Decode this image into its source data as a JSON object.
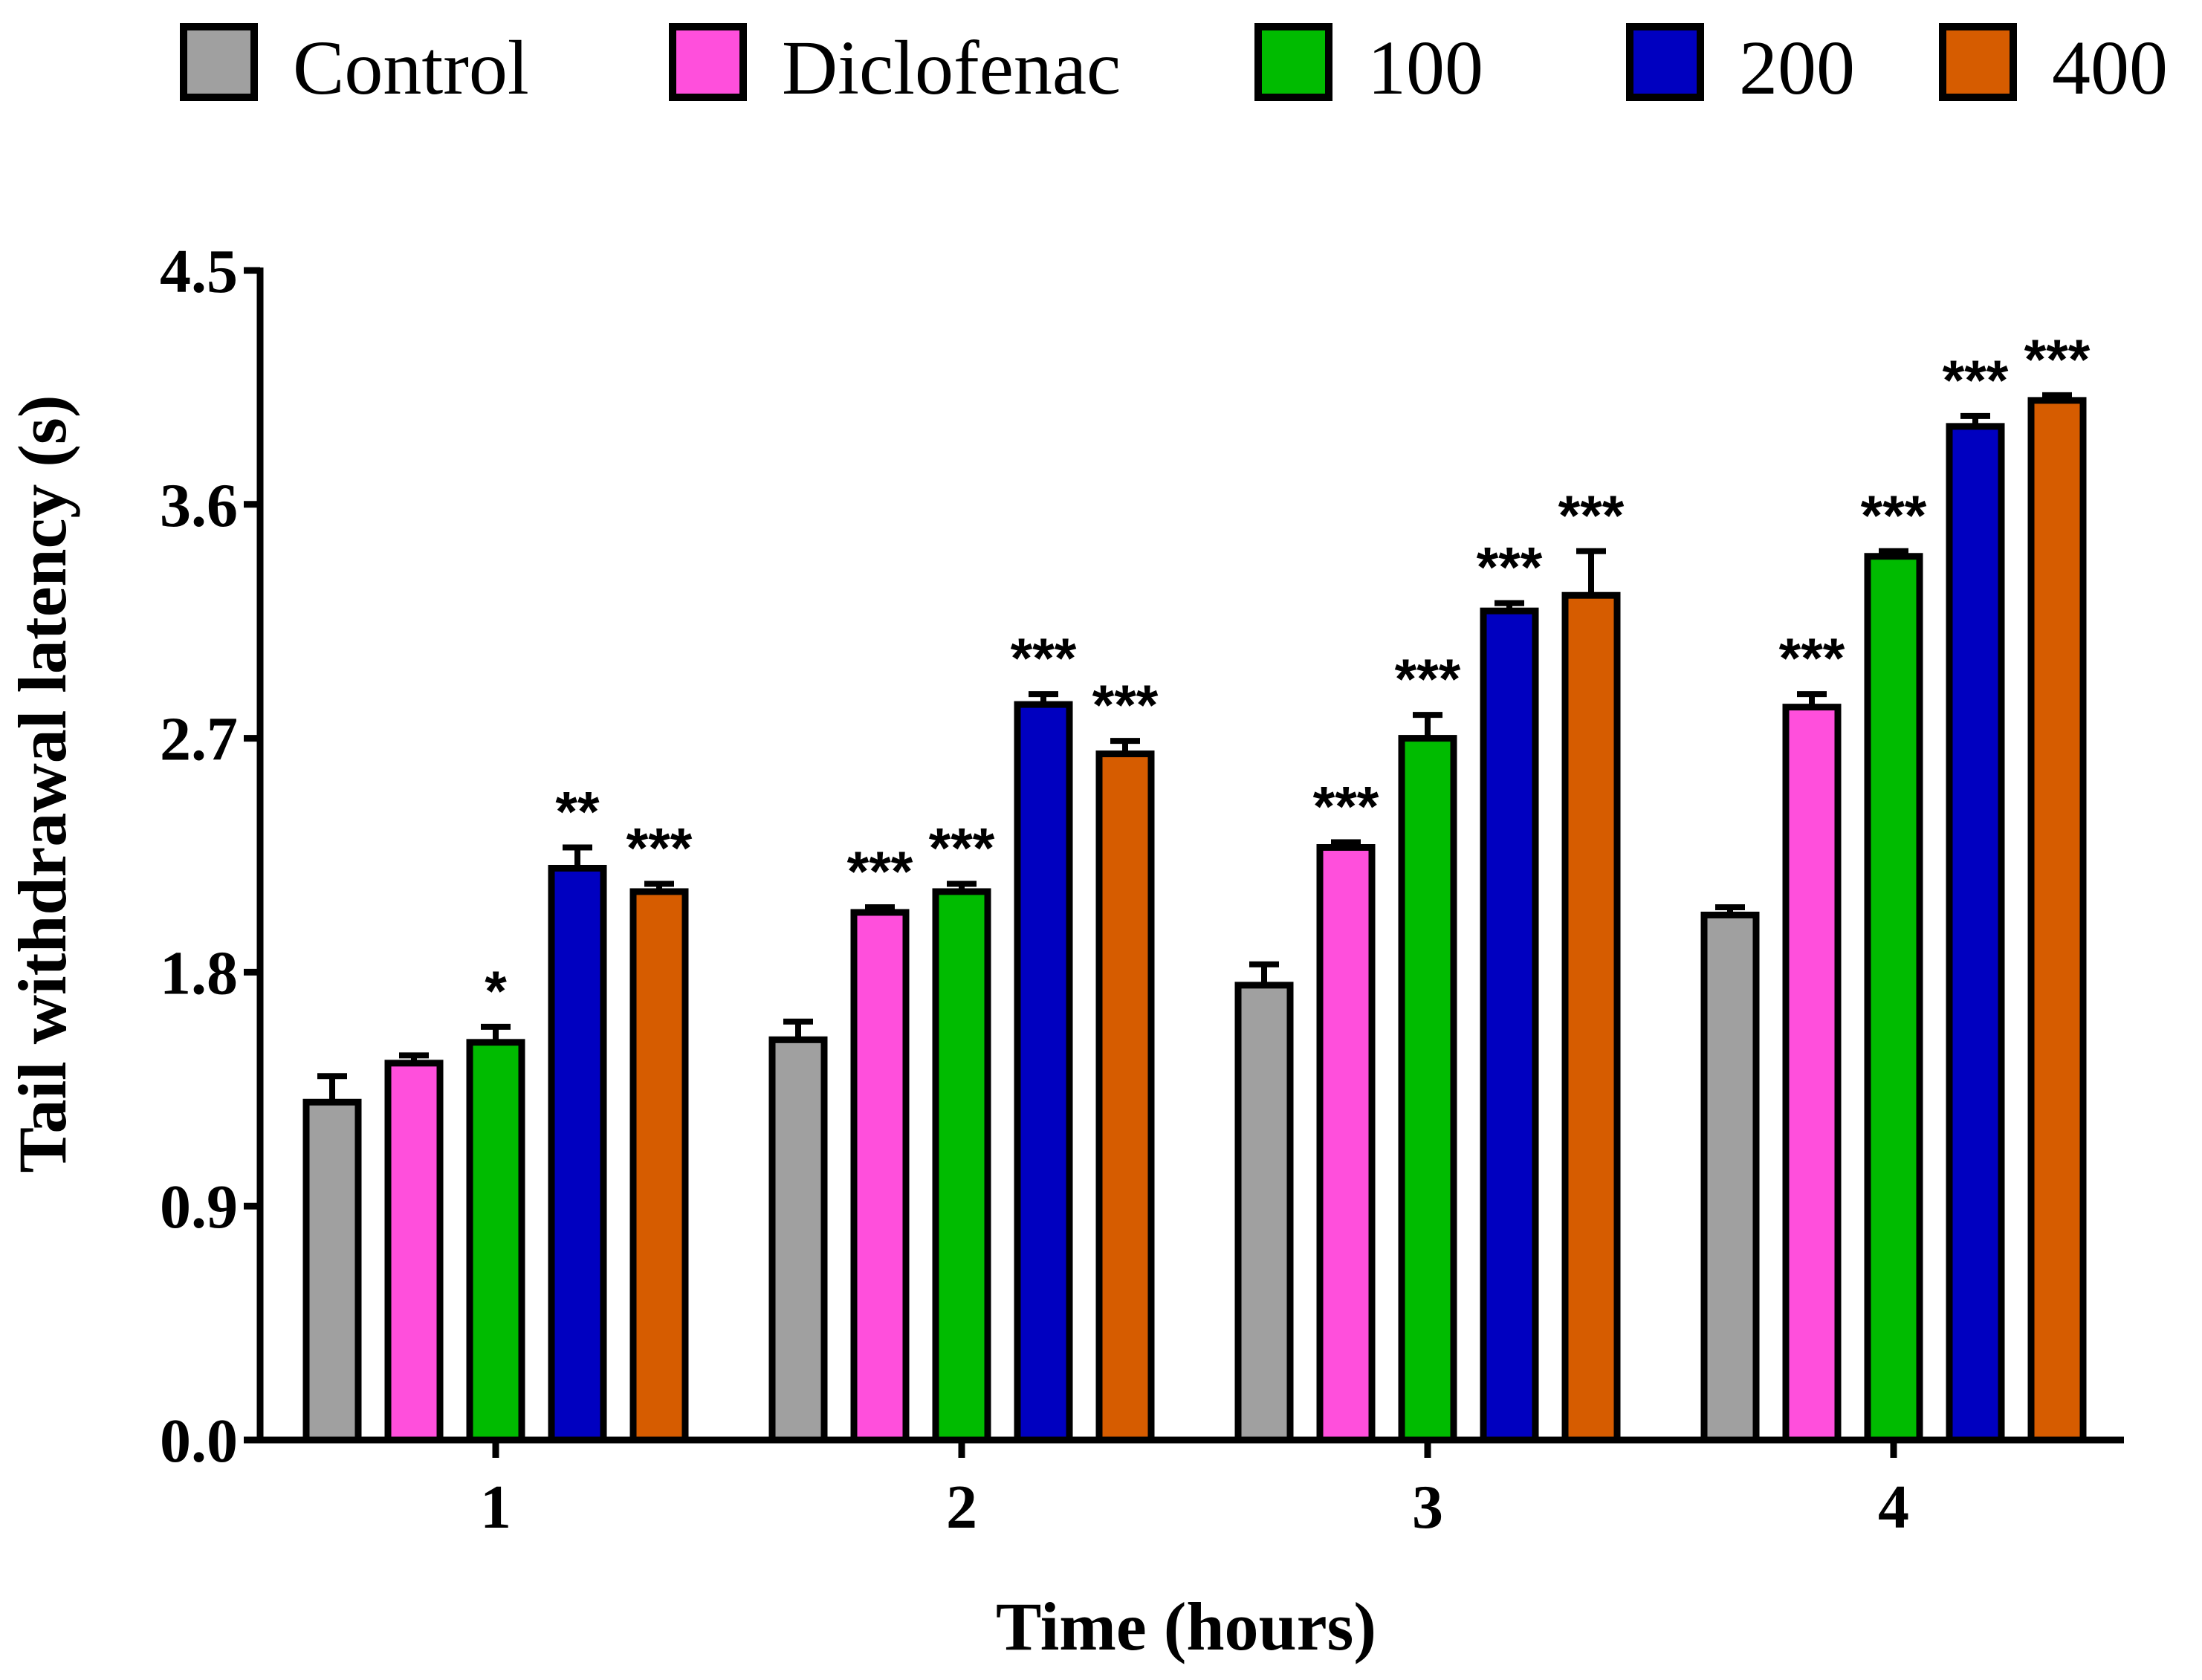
{
  "chart_data": {
    "type": "bar",
    "title": "",
    "xlabel": "Time (hours)",
    "ylabel": "Tail withdrawal latency (s)",
    "ylim": [
      0,
      4.5
    ],
    "yticks": [
      "0.0",
      "0.9",
      "1.8",
      "2.7",
      "3.6",
      "4.5"
    ],
    "categories": [
      "1",
      "2",
      "3",
      "4"
    ],
    "legend_position": "top",
    "series": [
      {
        "name": "Control",
        "color": "#a0a0a0",
        "values": [
          1.3,
          1.54,
          1.75,
          2.02
        ],
        "errors": [
          0.1,
          0.07,
          0.08,
          0.03
        ],
        "sig": [
          "",
          "",
          "",
          ""
        ]
      },
      {
        "name": "Diclofenac",
        "color": "#ff4fdc",
        "values": [
          1.45,
          2.03,
          2.28,
          2.82
        ],
        "errors": [
          0.03,
          0.02,
          0.02,
          0.05
        ],
        "sig": [
          "",
          "***",
          "***",
          "***"
        ]
      },
      {
        "name": "100",
        "color": "#00bb00",
        "values": [
          1.53,
          2.11,
          2.7,
          3.4
        ],
        "errors": [
          0.06,
          0.03,
          0.09,
          0.02
        ],
        "sig": [
          "*",
          "***",
          "***",
          "***"
        ]
      },
      {
        "name": "200",
        "color": "#0000c0",
        "values": [
          2.2,
          2.83,
          3.19,
          3.9
        ],
        "errors": [
          0.08,
          0.04,
          0.03,
          0.04
        ],
        "sig": [
          "**",
          "***",
          "***",
          "***"
        ]
      },
      {
        "name": "400",
        "color": "#d65c00",
        "values": [
          2.11,
          2.64,
          3.25,
          4.0
        ],
        "errors": [
          0.03,
          0.05,
          0.17,
          0.02
        ],
        "sig": [
          "***",
          "***",
          "***",
          "***"
        ]
      }
    ]
  }
}
